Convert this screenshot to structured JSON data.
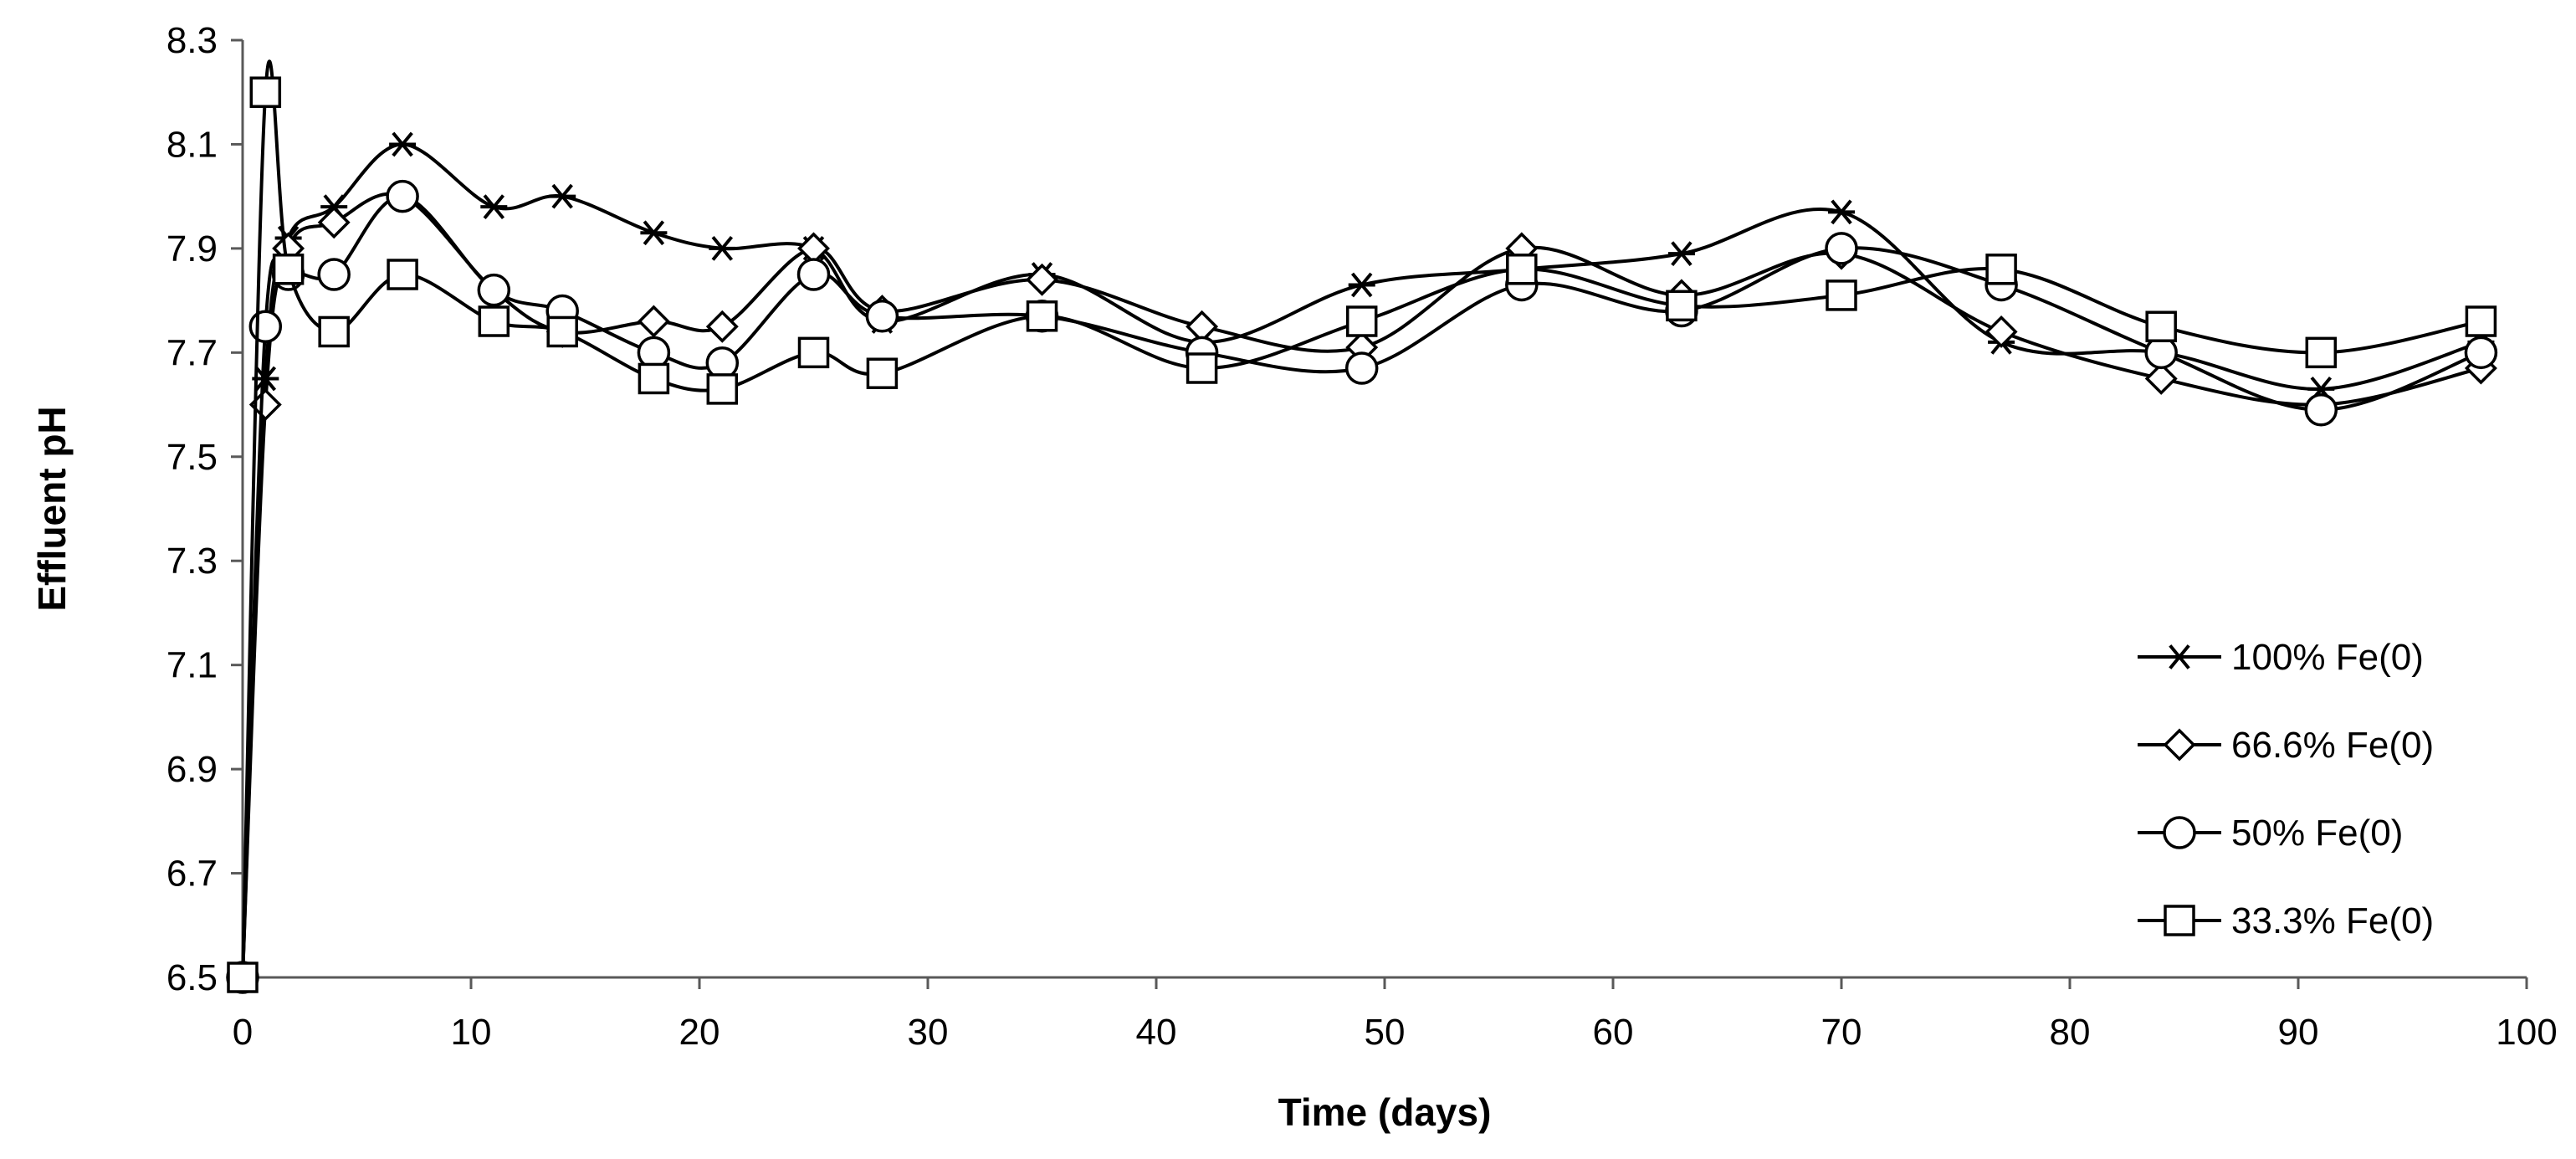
{
  "chart_data": {
    "type": "line",
    "title": "",
    "xlabel": "Time (days)",
    "ylabel": "Effluent pH",
    "xlim": [
      0,
      100
    ],
    "ylim": [
      6.5,
      8.3
    ],
    "xticks": [
      0,
      10,
      20,
      30,
      40,
      50,
      60,
      70,
      80,
      90,
      100
    ],
    "yticks": [
      6.5,
      6.7,
      6.9,
      7.1,
      7.3,
      7.5,
      7.7,
      7.9,
      8.1,
      8.3
    ],
    "xtick_labels": [
      "0",
      "10",
      "20",
      "30",
      "40",
      "50",
      "60",
      "70",
      "80",
      "90",
      "100"
    ],
    "ytick_labels": [
      "6.5",
      "6.7",
      "6.9",
      "7.1",
      "7.3",
      "7.5",
      "7.7",
      "7.9",
      "8.1",
      "8.3"
    ],
    "grid": false,
    "legend_position": "right",
    "line_color": "#000000",
    "series": [
      {
        "name": "100% Fe(0)",
        "marker": "star",
        "x": [
          0,
          1,
          2,
          4,
          7,
          11,
          14,
          18,
          21,
          25,
          28,
          35,
          42,
          49,
          56,
          63,
          70,
          77,
          84,
          91,
          98
        ],
        "y": [
          6.5,
          7.65,
          7.92,
          7.98,
          8.1,
          7.98,
          8.0,
          7.93,
          7.9,
          7.9,
          7.76,
          7.85,
          7.72,
          7.83,
          7.86,
          7.89,
          7.97,
          7.72,
          7.7,
          7.63,
          7.72
        ]
      },
      {
        "name": "66.6% Fe(0)",
        "marker": "diamond",
        "x": [
          0,
          1,
          2,
          4,
          7,
          11,
          14,
          18,
          21,
          25,
          28,
          35,
          42,
          49,
          56,
          63,
          70,
          77,
          84,
          91,
          98
        ],
        "y": [
          6.5,
          7.6,
          7.9,
          7.95,
          8.0,
          7.82,
          7.74,
          7.76,
          7.75,
          7.9,
          7.78,
          7.84,
          7.75,
          7.71,
          7.9,
          7.81,
          7.89,
          7.74,
          7.65,
          7.6,
          7.67
        ]
      },
      {
        "name": "50% Fe(0)",
        "marker": "circle",
        "x": [
          0,
          1,
          2,
          4,
          7,
          11,
          14,
          18,
          21,
          25,
          28,
          35,
          42,
          49,
          56,
          63,
          70,
          77,
          84,
          91,
          98
        ],
        "y": [
          6.5,
          7.75,
          7.85,
          7.85,
          8.0,
          7.82,
          7.78,
          7.7,
          7.68,
          7.85,
          7.77,
          7.77,
          7.7,
          7.67,
          7.83,
          7.78,
          7.9,
          7.83,
          7.7,
          7.59,
          7.7
        ]
      },
      {
        "name": "33.3% Fe(0)",
        "marker": "square",
        "x": [
          0,
          1,
          2,
          4,
          7,
          11,
          14,
          18,
          21,
          25,
          28,
          35,
          42,
          49,
          56,
          63,
          70,
          77,
          84,
          91,
          98
        ],
        "y": [
          6.5,
          8.2,
          7.86,
          7.74,
          7.85,
          7.76,
          7.74,
          7.65,
          7.63,
          7.7,
          7.66,
          7.77,
          7.67,
          7.76,
          7.86,
          7.79,
          7.81,
          7.86,
          7.75,
          7.7,
          7.76
        ]
      }
    ]
  }
}
